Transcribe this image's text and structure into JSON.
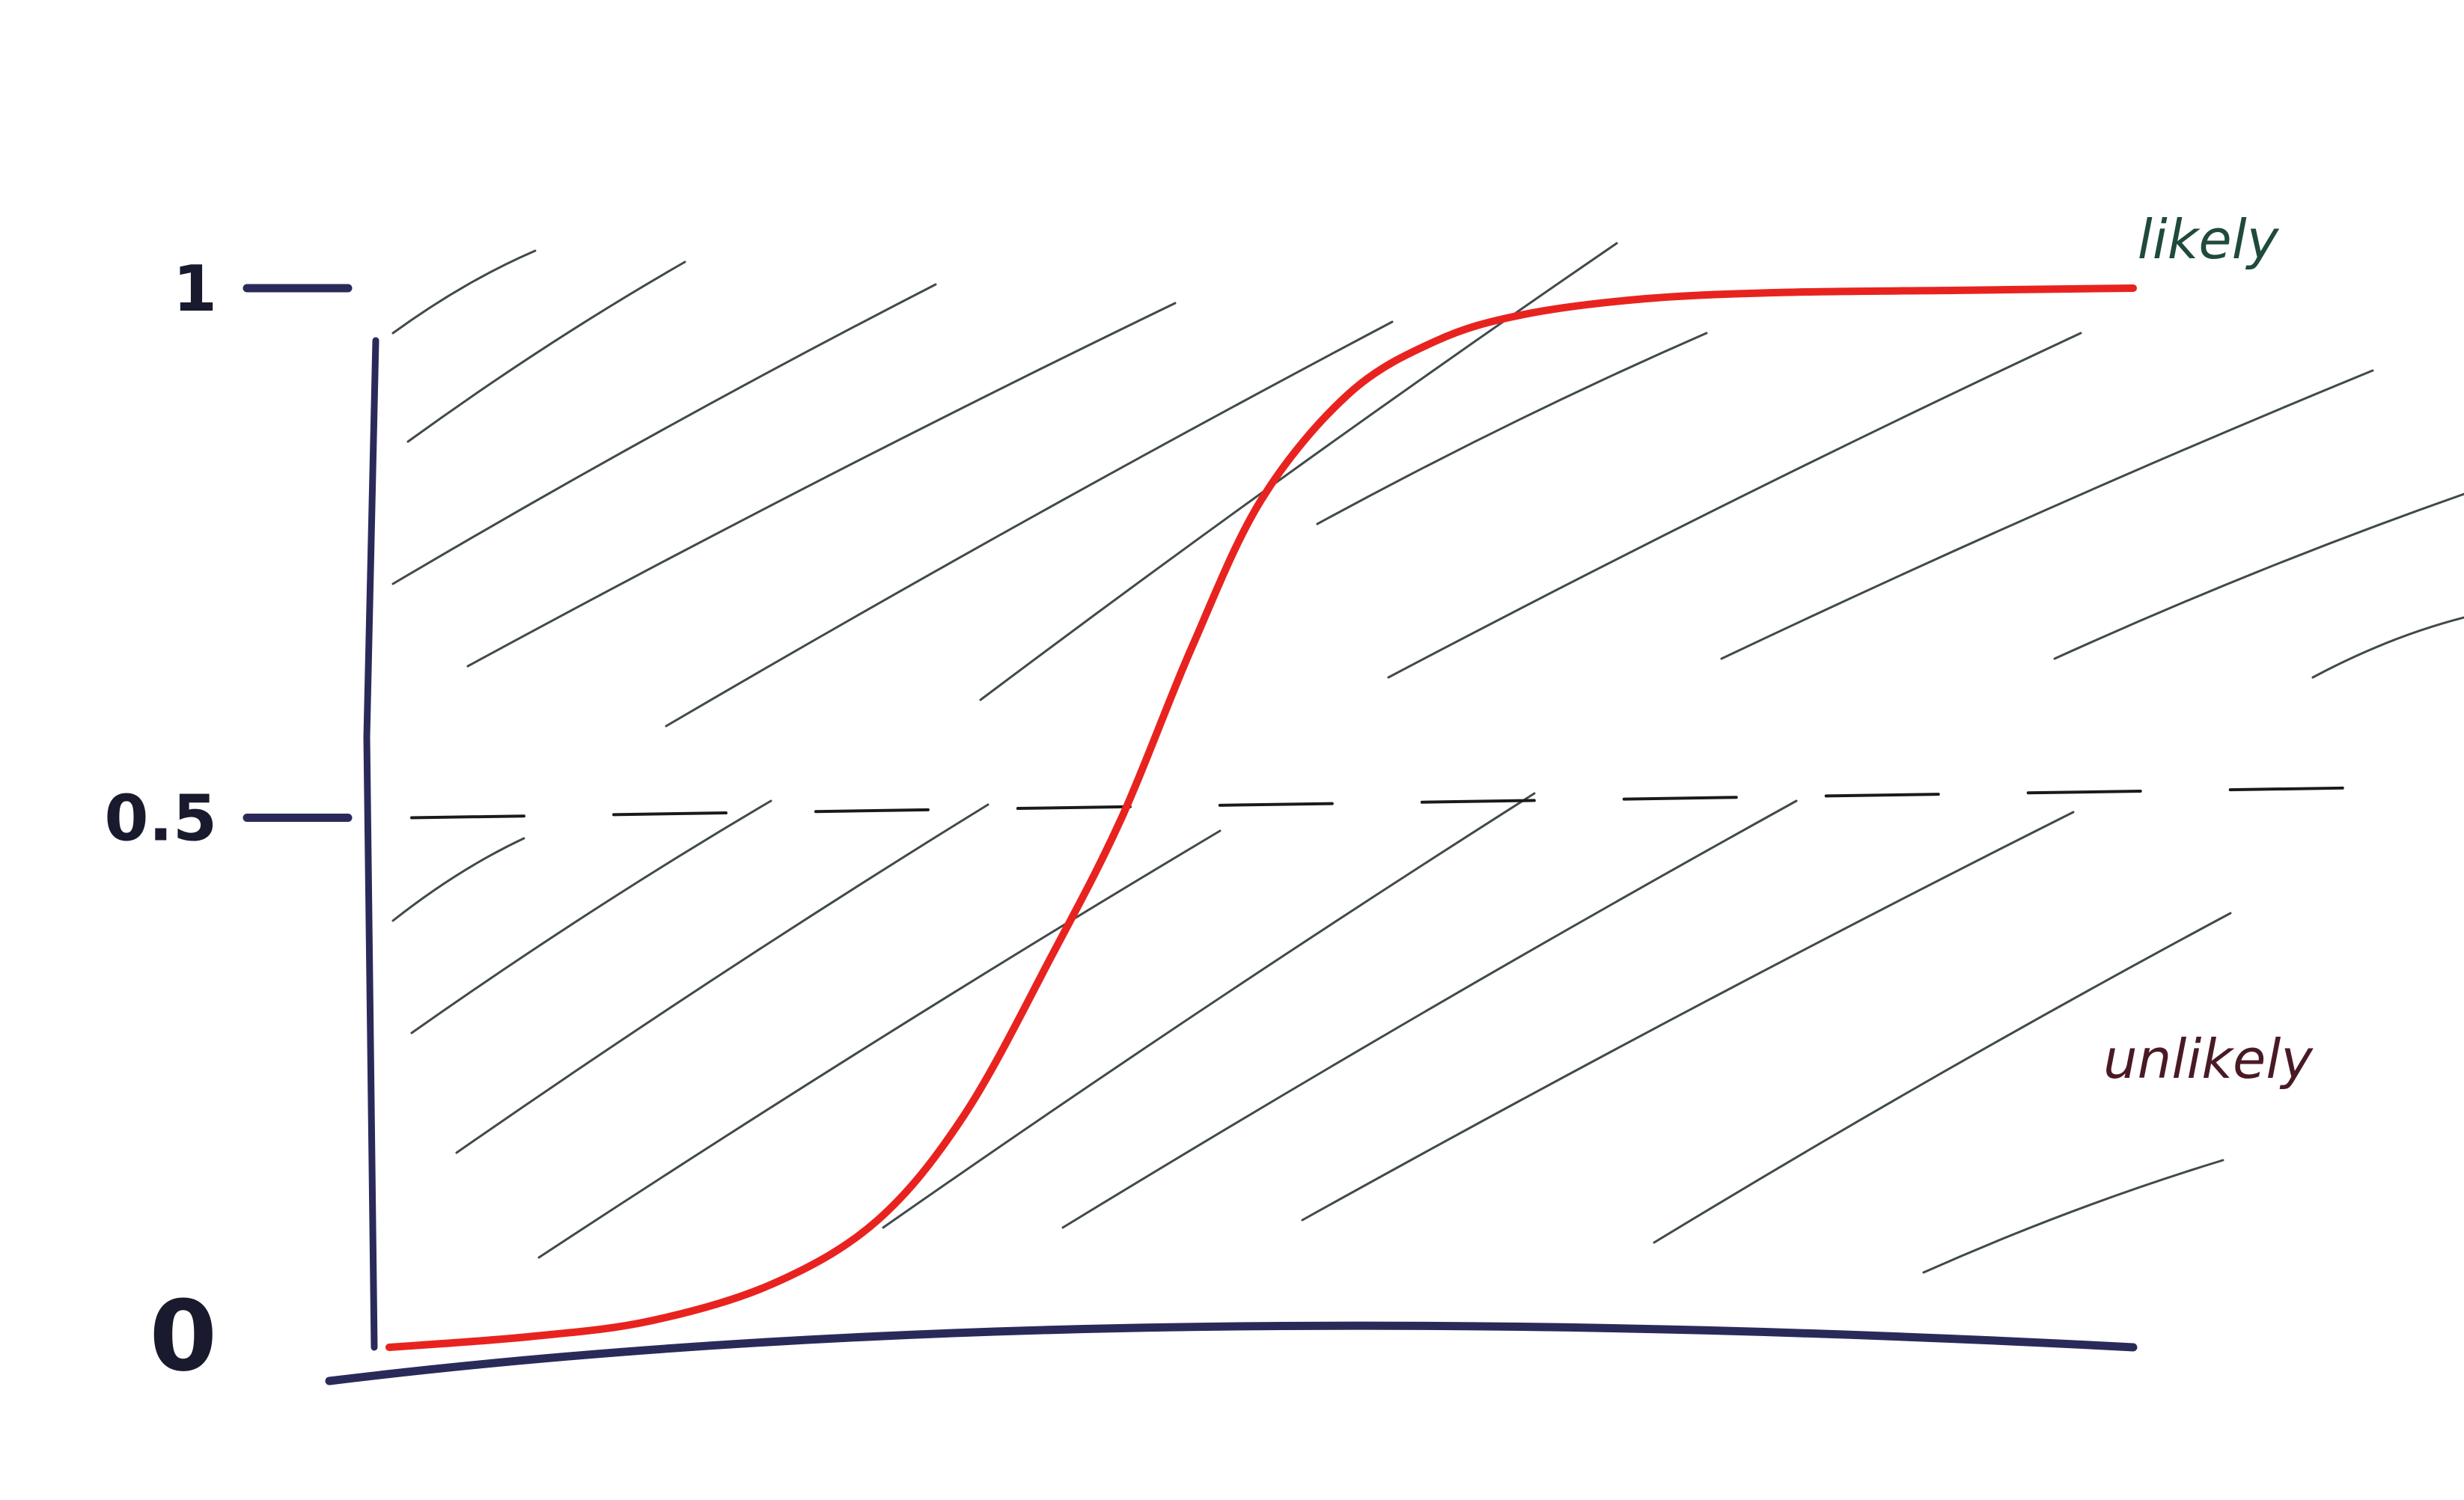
{
  "chart_data": {
    "type": "line",
    "title": "",
    "xlabel": "",
    "ylabel": "",
    "ylim": [
      0,
      1
    ],
    "y_ticks": [
      {
        "value": 0,
        "label": "0"
      },
      {
        "value": 0.5,
        "label": "0.5"
      },
      {
        "value": 1,
        "label": "1"
      }
    ],
    "threshold": {
      "value": 0.5,
      "style": "dashed"
    },
    "regions": [
      {
        "label": "likely",
        "side": "above-threshold",
        "color": "#1f4a3c"
      },
      {
        "label": "unlikely",
        "side": "below-threshold",
        "color": "#4a1a24"
      }
    ],
    "x": [
      0,
      0.08,
      0.15,
      0.22,
      0.28,
      0.33,
      0.38,
      0.42,
      0.46,
      0.5,
      0.55,
      0.6,
      0.65,
      0.72,
      0.8,
      0.9,
      1.0
    ],
    "series": [
      {
        "values": [
          0,
          0.01,
          0.025,
          0.06,
          0.12,
          0.22,
          0.37,
          0.5,
          0.66,
          0.8,
          0.9,
          0.95,
          0.975,
          0.99,
          0.996,
          0.998,
          1.0
        ],
        "color": "#e8231f"
      }
    ],
    "axis_color": "#2a2a5a",
    "hatch_color": "#1f2a2a",
    "grid": false
  }
}
